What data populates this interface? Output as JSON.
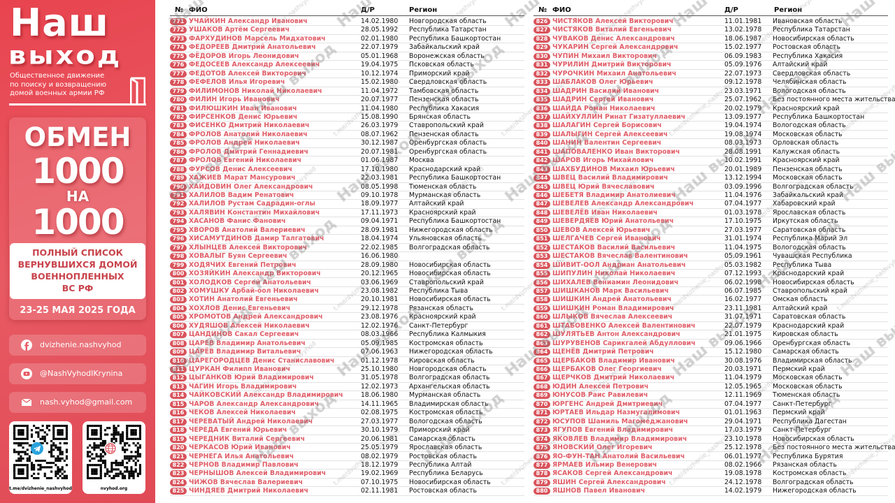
{
  "sidebar": {
    "logo_line1": "Наш",
    "logo_line2": "выход",
    "subtitle_lines": [
      "Общественное движение",
      "по поиску и возвращению",
      "домой военных армии РФ"
    ],
    "promo_title": "ОБМЕН",
    "promo_number1": "1000",
    "promo_na": "НА",
    "promo_number2": "1000",
    "list_title_lines": [
      "ПОЛНЫЙ СПИСОК",
      "ВЕРНУВШИХСЯ ДОМОЙ",
      "ВОЕННОПЛЕННЫХ",
      "ВС РФ"
    ],
    "date": "23-25 МАЯ 2025 ГОДА",
    "contacts": [
      {
        "icon": "facebook-icon",
        "label": "dvizhenie.nashvyhod"
      },
      {
        "icon": "youtube-icon",
        "label": "@NashVyhodIKrynina"
      },
      {
        "icon": "mail-icon",
        "label": "nash.vyhod@gmail.com"
      }
    ],
    "qr": [
      {
        "icon": "telegram-icon",
        "caption": "t.me/dvizhenie_nashvyhod",
        "center_color": "#2aa3dd"
      },
      {
        "icon": "globe-icon",
        "caption": "nvyhod.org",
        "center_color": "#e0606a"
      }
    ]
  },
  "colors": {
    "brand_red": "#e8444f",
    "name_text": "#e0606a",
    "badge": "#d9545c"
  },
  "watermark": {
    "logo": "Наш выход",
    "channel": "t.me/dvizhenie_nashvyhod"
  },
  "columns": {
    "num": "№",
    "name": "ФИО",
    "dob": "Д/Р",
    "region": "Регион"
  },
  "table_left": {
    "rows": [
      [
        "771",
        "УЧАЙКИН Александр Иванович",
        "14.02.1980",
        "Новгородская область"
      ],
      [
        "772",
        "УШАКОВ Артём Сергеевич",
        "28.05.1992",
        "Республика Татарстан"
      ],
      [
        "773",
        "ФАРХУДИНОВ Марсель Мидхатович",
        "02.01.1980",
        "Республика Башкортостан"
      ],
      [
        "774",
        "ФЕДОРЕЕВ Дмитрий Анатольевич",
        "22.07.1979",
        "Забайкальский край"
      ],
      [
        "775",
        "ФЁДОРОВ Игорь Леонидович",
        "05.01.1968",
        "Воронежская область"
      ],
      [
        "776",
        "ФЕДОСЕЕВ Александр Алексеевич",
        "19.04.1975",
        "Псковская область"
      ],
      [
        "777",
        "ФЕДОТОВ Алексей Викторович",
        "10.12.1974",
        "Приморский край"
      ],
      [
        "778",
        "ФЕФЕЛОВ Илья Игоревич",
        "15.02.1980",
        "Свердловская область"
      ],
      [
        "779",
        "ФИЛИМОНОВ Николай Николаевич",
        "11.04.1972",
        "Тамбовская область"
      ],
      [
        "780",
        "ФИЛИН Игорь Иванович",
        "20.07.1977",
        "Пензенская область"
      ],
      [
        "781",
        "ФИЛЮШКИН Иван Иванович",
        "11.04.1980",
        "Республика Хакасия"
      ],
      [
        "782",
        "ФИРСЕНКОВ Денис Юрьевич",
        "15.08.1990",
        "Брянская область"
      ],
      [
        "783",
        "ФИСЕНКО Дмитрий Николаевич",
        "26.03.1979",
        "Ставропольский край"
      ],
      [
        "784",
        "ФРОЛОВ Анатолий Николаевич",
        "08.07.1962",
        "Пензенская область"
      ],
      [
        "785",
        "ФРОЛОВ Андрей Николаевич",
        "30.12.1987",
        "Оренбургская область"
      ],
      [
        "786",
        "ФРОЛОВ Дмитрий Геннадиевич",
        "20.07.1981",
        "Оренбургская область"
      ],
      [
        "787",
        "ФРОЛОВ Евгений Николаевич",
        "01.06.1987",
        "Москва"
      ],
      [
        "788",
        "ФУРСОВ Денис Алексеевич",
        "17.10.1980",
        "Краснодарский край"
      ],
      [
        "789",
        "ХАЖИЕВ Марат Мансурович",
        "22.03.1981",
        "Республика Башкортостан"
      ],
      [
        "790",
        "ХАЙДОВИН Олег Александрович",
        "08.05.1998",
        "Тюменская область"
      ],
      [
        "791",
        "ХАЛИЛОВ Вадим Ренатович",
        "09.10.1978",
        "Мурманская область"
      ],
      [
        "792",
        "ХАЛИЛОВ Рустам Садрадин-оглы",
        "18.09.1977",
        "Алтайский край"
      ],
      [
        "793",
        "ХАЛЯВИН Константин Михайлович",
        "17.11.1973",
        "Красноярский край"
      ],
      [
        "794",
        "ХАСАНОВ Фанис Фанович",
        "09.04.1971",
        "Республика Башкортостан"
      ],
      [
        "795",
        "ХВОРОВ Анатолий Валериевич",
        "28.09.1981",
        "Нижегородская область"
      ],
      [
        "796",
        "ХИСАМУТДИНОВ Дамир Талгатович",
        "18.04.1974",
        "Ульяновская область"
      ],
      [
        "797",
        "ХЛЫНЦЕВ Алексей Викторович",
        "22.02.1985",
        "Волгоградская область"
      ],
      [
        "798",
        "ХОВАЛЫГ Буян Сергеевич",
        "16.06.1980",
        ""
      ],
      [
        "799",
        "ХОДЯЧИХ Евгений Петрович",
        "28.09.1980",
        "Новосибирская область"
      ],
      [
        "800",
        "ХОЗЯЙКИН Александр Викторович",
        "20.12.1965",
        "Новосибирская область"
      ],
      [
        "801",
        "ХОЛОДКОВ Сергей Анатольевич",
        "03.06.1969",
        "Ставропольский край"
      ],
      [
        "802",
        "ХОМУШКУ Арбай-оол Николаевич",
        "23.08.1982",
        "Республика Тыва"
      ],
      [
        "803",
        "ХОТИН Анатолий Евгеньевич",
        "20.10.1981",
        "Новосибирская область"
      ],
      [
        "804",
        "ХОХЛОВ Денис Евгеньевич",
        "29.12.1978",
        "Рязанская область"
      ],
      [
        "805",
        "ХРОМОТОВ Андрей Александрович",
        "23.08.1976",
        "Красноярский край"
      ],
      [
        "806",
        "ХУДЯШОВ Алексей Николаевич",
        "12.02.1976",
        "Санкт-Петербург"
      ],
      [
        "807",
        "ЦАНДИНОВ Сакал Сергеевич",
        "08.03.1966",
        "Республика Калмыкия"
      ],
      [
        "808",
        "ЦАРЕВ Владимир Анатольевич",
        "05.09.1985",
        "Костромская область"
      ],
      [
        "809",
        "ЦАРЁВ Владимир Витальевич",
        "07.06.1963",
        "Нижегородская область"
      ],
      [
        "810",
        "ЦАРЕГОРОДЦЕВ Денис Станиславович",
        "01.12.1978",
        "Кировская область"
      ],
      [
        "811",
        "ЦУРКАН Филипп Иванович",
        "25.10.1980",
        "Новгородская область"
      ],
      [
        "812",
        "ЦЫГАНКОВ Юрий Владимирович",
        "31.05.1978",
        "Волгоградская область"
      ],
      [
        "813",
        "ЧАГИН Игорь Владимирович",
        "12.02.1973",
        "Архангельская область"
      ],
      [
        "814",
        "ЧАЙКОВСКИЙ Александр Владимирович",
        "18.06.1980",
        "Мурманская область"
      ],
      [
        "815",
        "ЧАРОВ Александр Александрович",
        "14.11.1965",
        "Владимирская область"
      ],
      [
        "816",
        "ЧЕКОВ Алексей Николаевич",
        "02.08.1975",
        "Костромская область"
      ],
      [
        "817",
        "ЧЕРЕВАТЫЙ Андрей Николаевич",
        "27.03.1977",
        "Вологодская область"
      ],
      [
        "818",
        "ЧЕРЕДА Евгений Юрьевич",
        "30.10.1979",
        "Приморский край"
      ],
      [
        "819",
        "ЧЕРЕДНИК Виталий Сергеевич",
        "20.06.1981",
        "Самарская область"
      ],
      [
        "820",
        "ЧЕРКАСОВ Юрий Иванович",
        "25.05.1979",
        "Ярославская область"
      ],
      [
        "821",
        "ЧЕРНЕГА Илья Анатольевич",
        "08.02.1979",
        "Ростовская область"
      ],
      [
        "822",
        "ЧЕРНОВ Владимир Павлович",
        "18.12.1979",
        "Республика Алтай"
      ],
      [
        "823",
        "ЧЕРНЫШОВ Алексей Владимирович",
        "19.02.1969",
        "Республика Беларусь"
      ],
      [
        "824",
        "ЧИЖОВ Вячеслав Валериевич",
        "07.10.1975",
        "Новосибирская область"
      ],
      [
        "825",
        "ЧИНДЯЕВ Дмитрий Николаевич",
        "02.11.1981",
        "Ростовская область"
      ]
    ]
  },
  "table_right": {
    "rows": [
      [
        "826",
        "ЧИСТЯКОВ Алексей Викторович",
        "11.01.1981",
        "Ивановская область"
      ],
      [
        "827",
        "ЧИСТЯКОВ Виталий Евгеньевич",
        "13.02.1978",
        "Республика Татарстан"
      ],
      [
        "828",
        "ЧУВАКОВ Денис Александрович",
        "18.06.1987",
        "Новосибирская область"
      ],
      [
        "829",
        "ЧУКАРИН Сергей Александрович",
        "15.02.1977",
        "Ростовская область"
      ],
      [
        "830",
        "ЧУПИН Михаил Викторович",
        "06.09.1983",
        "Республика Хакасия"
      ],
      [
        "831",
        "ЧУРИЛИН Дмитрий Викторович",
        "05.09.1976",
        "Алтайский край"
      ],
      [
        "832",
        "ЧУРОЧКИН Михаил Анатольевич",
        "22.07.1973",
        "Свердловская область"
      ],
      [
        "833",
        "ШАБЛАКОВ Олег Юрьевич",
        "09.12.1978",
        "Челябинская область"
      ],
      [
        "834",
        "ШАДРИН Василий Иванович",
        "23.03.1971",
        "Вологодская область"
      ],
      [
        "835",
        "ШАДРИН Сергей Иванович",
        "25.07.1962",
        "Без постоянного места жительства"
      ],
      [
        "836",
        "ШАЙДА Роман Николаевич",
        "20.02.1979",
        "Красноярский край"
      ],
      [
        "837",
        "ШАЙХУЛЛИН Ринат Гизатуллаевич",
        "13.09.1977",
        "Республика Башкортостан"
      ],
      [
        "838",
        "ШАЛАГИН Сергей Борисович",
        "19.04.1974",
        "Вологодская область"
      ],
      [
        "839",
        "ШАЛЫГИН Сергей Алексеевич",
        "19.08.1974",
        "Московская область"
      ],
      [
        "840",
        "ШАНИН Валентин Сергеевич",
        "08.03.1973",
        "Орловская область"
      ],
      [
        "841",
        "ШАПОВАЛЕНКО Иван Викторович",
        "28.08.1991",
        "Калужская область"
      ],
      [
        "842",
        "ШАРОВ Игорь Михайлович",
        "10.02.1991",
        "Красноярский край"
      ],
      [
        "843",
        "ШАХБУДИНОВ Михаил Юрьевич",
        "20.01.1989",
        "Пензенская область"
      ],
      [
        "844",
        "ШВЕЦ Василий Владимирович",
        "13.12.1994",
        "Московская область"
      ],
      [
        "845",
        "ШВЕЦ Юрий Вячеславович",
        "03.09.1996",
        "Волгоградская область"
      ],
      [
        "846",
        "ШЕБЕТЯ Владимир Анатолиевич",
        "11.04.1976",
        "Забайкальский край"
      ],
      [
        "847",
        "ШЕВЕЛЕВ Александр Александрович",
        "07.04.1977",
        "Хабаровский край"
      ],
      [
        "848",
        "ШЕВЕЛЁВ Иван Николаевич",
        "01.03.1978",
        "Ярославская область"
      ],
      [
        "849",
        "ШЕВЕРДЯЕВ Юрий Анатольевич",
        "17.10.1975",
        "Иркутская область"
      ],
      [
        "850",
        "ШЕВОВ Алексей Юрьевич",
        "27.03.1977",
        "Саратовская область"
      ],
      [
        "851",
        "ШЕЛГАЧЕВ Сергей Иванович",
        "31.01.1974",
        "Республика Марий Эл"
      ],
      [
        "852",
        "ШЕСТАКОВ Василий Васильевич",
        "11.04.1975",
        "Вологодская область"
      ],
      [
        "853",
        "ШЕСТАКОВ Вячеслав Валентинович",
        "05.09.1961",
        "Чувашская Республика"
      ],
      [
        "854",
        "ШИВИТ-ООЛ Андриан Анатольевич",
        "05.03.1982",
        "Республика Тыва"
      ],
      [
        "855",
        "ШИПУЛИН Николай Николаевич",
        "07.12.1993",
        "Краснодарский край"
      ],
      [
        "856",
        "ШИХАЛЕВ Вениамин Леонидович",
        "06.02.1998",
        "Новосибирская область"
      ],
      [
        "857",
        "ШИШКАНОВ Марк Васильевич",
        "06.07.1985",
        "Ставропольский край"
      ],
      [
        "858",
        "ШИШКИН Андрей Анатольевич",
        "16.02.1977",
        "Омская область"
      ],
      [
        "859",
        "ШИШКИН Роман Владимирович",
        "23.11.1981",
        "Алтайский край"
      ],
      [
        "860",
        "ШЛЫКОВ Вячеслав Алексеевич",
        "31.07.1971",
        "Саратовская область"
      ],
      [
        "861",
        "ШТАБОВЕНКО Алексей Валентинович",
        "22.07.1979",
        "Краснодарский край"
      ],
      [
        "862",
        "ШУЛЯТЬЕВ Антон Александрович",
        "21.01.1975",
        "Кировская область"
      ],
      [
        "863",
        "ШУРУВЕНОВ Сарикгалей Абдуллович",
        "09.06.1966",
        "Оренбургская область"
      ],
      [
        "864",
        "ЩЕНЁВ Дмитрий Петрович",
        "15.12.1980",
        "Самарская область"
      ],
      [
        "865",
        "ЩЕРБАКОВ Владимир Иванович",
        "30.08.1976",
        "Владимирская область"
      ],
      [
        "866",
        "ЩЕРБАКОВ Олег Георгиевич",
        "20.03.1971",
        "Пермский край"
      ],
      [
        "867",
        "ЩЕРЧКОВ Дмитрий Николаевич",
        "11.04.1979",
        "Московская область"
      ],
      [
        "868",
        "ЮДИН Алексей Петрович",
        "12.05.1965",
        "Московская область"
      ],
      [
        "869",
        "ЮНУСОВ Раис Равилевич",
        "12.11.1969",
        "Тюменская область"
      ],
      [
        "870",
        "ЮРГЕНС Андрей Дмитриевич",
        "07.04.1977",
        "Санкт-Петербург"
      ],
      [
        "871",
        "ЮРТАЕВ Ильдар Назмугалимович",
        "01.01.1963",
        "Пермский край"
      ],
      [
        "872",
        "ЮСУПОВ Шамиль Магомеджанович",
        "29.04.1971",
        "Республика Дагестан"
      ],
      [
        "873",
        "ЯГУПОВ Евгений Владимирович",
        "17.03.1979",
        "Санкт-Петербург"
      ],
      [
        "874",
        "ЯКОВЛЕВ Владимир Владимирович",
        "23.10.1978",
        "Новосибирская область"
      ],
      [
        "875",
        "ЯНОВСКИЙ Олег Игоревич",
        "25.12.1978",
        "Без постоянного места жительства"
      ],
      [
        "876",
        "ЯО-ФУН-ТАН Анатолий Васильевич",
        "06.01.1977",
        "Республика Бурятия"
      ],
      [
        "877",
        "ЯРМАЕВ Ильмир Венерович",
        "08.02.1966",
        "Рязанская область"
      ],
      [
        "878",
        "ЯСАКОВ Сергей Александрович",
        "19.08.1978",
        "Костромская область"
      ],
      [
        "879",
        "ЯШИН Сергей Александрович",
        "24.12.1978",
        "Волгоградская область"
      ],
      [
        "880",
        "ЯШНОВ Павел Иванович",
        "14.02.1979",
        "Нижегородская область"
      ]
    ]
  }
}
